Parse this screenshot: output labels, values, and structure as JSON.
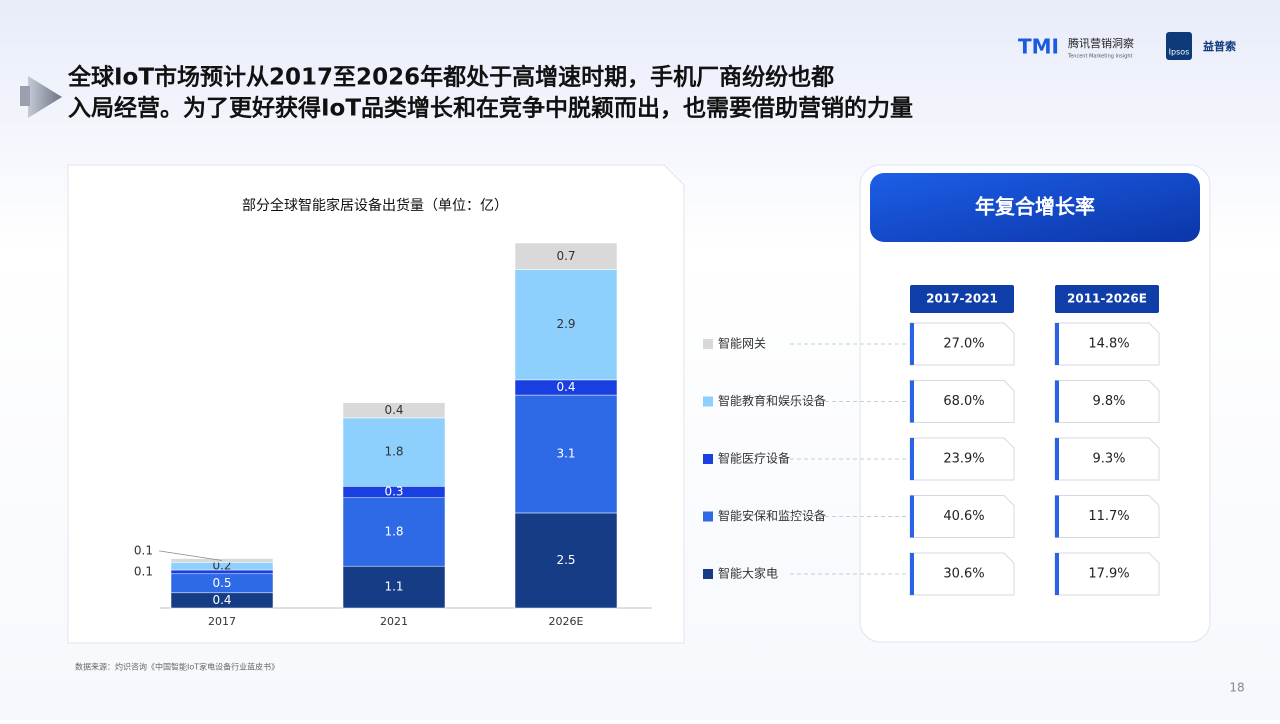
{
  "header": {
    "title_lines": [
      "全球IoT市场预计从2017至2026年都处于高增速时期，手机厂商纷纷也都",
      "入局经营。为了更好获得IoT品类增长和在竞争中脱颖而出，也需要借助营销的力量"
    ],
    "logos": {
      "tmi": "TMI",
      "tmi_cn": "腾讯营销洞察",
      "tmi_en": "Tencent Marketing Insight",
      "ipsos": "Ipsos",
      "ipsos_cn": "益普索"
    }
  },
  "chart_data": {
    "type": "stacked_bar",
    "title": "部分全球智能家居设备出货量（单位：亿）",
    "categories": [
      "2017",
      "2021",
      "2026E"
    ],
    "series": [
      {
        "name": "智能大家电",
        "color": "#173c86",
        "values": [
          0.4,
          1.1,
          2.5
        ]
      },
      {
        "name": "智能安保和监控设备",
        "color": "#2f6ae6",
        "values": [
          0.5,
          1.8,
          3.1
        ]
      },
      {
        "name": "智能医疗设备",
        "color": "#1a3fe0",
        "values": [
          0.1,
          0.3,
          0.4
        ]
      },
      {
        "name": "智能教育和娱乐设备",
        "color": "#8ed0fd",
        "values": [
          0.2,
          1.8,
          2.9
        ]
      },
      {
        "name": "智能网关",
        "color": "#d9d9d9",
        "values": [
          0.1,
          0.4,
          0.7
        ]
      }
    ]
  },
  "growth_table": {
    "title": "年复合增长率",
    "columns": [
      "2017-2021",
      "2011-2026E"
    ],
    "rows": [
      [
        "27.0%",
        "14.8%"
      ],
      [
        "68.0%",
        "9.8%"
      ],
      [
        "23.9%",
        "9.3%"
      ],
      [
        "40.6%",
        "11.7%"
      ],
      [
        "30.6%",
        "17.9%"
      ]
    ]
  },
  "source": "数据来源：灼识咨询《中国智能IoT家电设备行业蓝皮书》",
  "page_number": "18"
}
